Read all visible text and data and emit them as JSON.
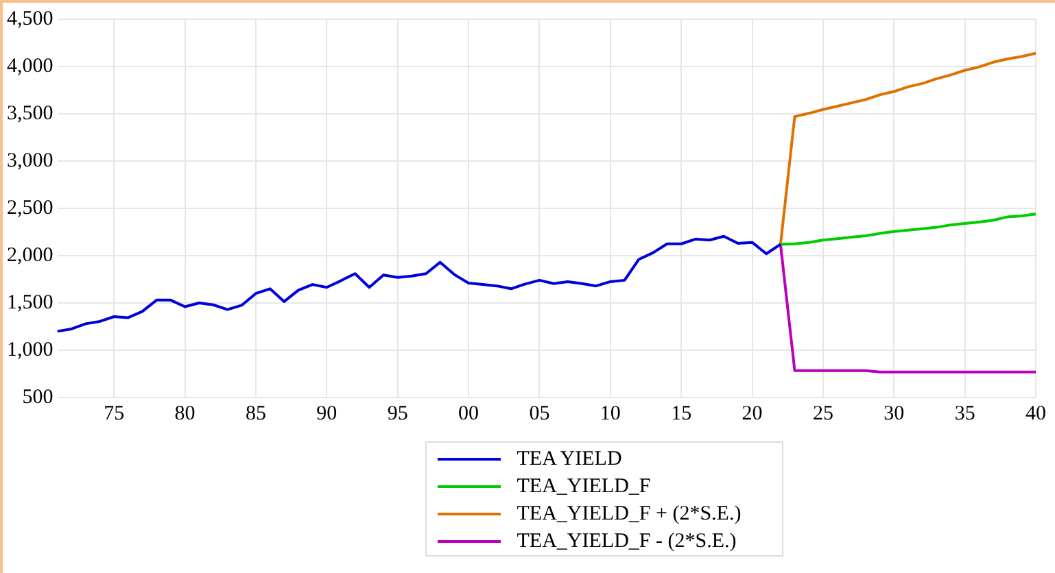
{
  "chart_data": {
    "type": "line",
    "x": [
      1971,
      1972,
      1973,
      1974,
      1975,
      1976,
      1977,
      1978,
      1979,
      1980,
      1981,
      1982,
      1983,
      1984,
      1985,
      1986,
      1987,
      1988,
      1989,
      1990,
      1991,
      1992,
      1993,
      1994,
      1995,
      1996,
      1997,
      1998,
      1999,
      2000,
      2001,
      2002,
      2003,
      2004,
      2005,
      2006,
      2007,
      2008,
      2009,
      2010,
      2011,
      2012,
      2013,
      2014,
      2015,
      2016,
      2017,
      2018,
      2019,
      2020,
      2021,
      2022,
      2023,
      2024,
      2025,
      2026,
      2027,
      2028,
      2029,
      2030,
      2031,
      2032,
      2033,
      2034,
      2035,
      2036,
      2037,
      2038,
      2039,
      2040
    ],
    "series": [
      {
        "name": "TEA YIELD",
        "color": "#0000dd",
        "values": [
          1200,
          1225,
          1280,
          1305,
          1355,
          1345,
          1410,
          1530,
          1530,
          1460,
          1500,
          1480,
          1430,
          1475,
          1600,
          1650,
          1515,
          1635,
          1695,
          1665,
          1735,
          1810,
          1665,
          1795,
          1770,
          1785,
          1810,
          1930,
          1800,
          1710,
          1695,
          1680,
          1650,
          1700,
          1740,
          1705,
          1725,
          1705,
          1680,
          1725,
          1740,
          1960,
          2030,
          2125,
          2125,
          2175,
          2165,
          2205,
          2130,
          2140,
          2020,
          2120,
          null,
          null,
          null,
          null,
          null,
          null,
          null,
          null,
          null,
          null,
          null,
          null,
          null,
          null,
          null,
          null,
          null,
          null
        ]
      },
      {
        "name": "TEA_YIELD_F",
        "color": "#00cc00",
        "values": [
          null,
          null,
          null,
          null,
          null,
          null,
          null,
          null,
          null,
          null,
          null,
          null,
          null,
          null,
          null,
          null,
          null,
          null,
          null,
          null,
          null,
          null,
          null,
          null,
          null,
          null,
          null,
          null,
          null,
          null,
          null,
          null,
          null,
          null,
          null,
          null,
          null,
          null,
          null,
          null,
          null,
          null,
          null,
          null,
          null,
          null,
          null,
          null,
          null,
          null,
          null,
          2120,
          2125,
          2140,
          2165,
          2180,
          2195,
          2210,
          2235,
          2255,
          2270,
          2285,
          2300,
          2325,
          2340,
          2355,
          2375,
          2410,
          2420,
          2440
        ]
      },
      {
        "name": "TEA_YIELD_F + (2*S.E.)",
        "color": "#e07000",
        "values": [
          null,
          null,
          null,
          null,
          null,
          null,
          null,
          null,
          null,
          null,
          null,
          null,
          null,
          null,
          null,
          null,
          null,
          null,
          null,
          null,
          null,
          null,
          null,
          null,
          null,
          null,
          null,
          null,
          null,
          null,
          null,
          null,
          null,
          null,
          null,
          null,
          null,
          null,
          null,
          null,
          null,
          null,
          null,
          null,
          null,
          null,
          null,
          null,
          null,
          null,
          null,
          2120,
          3470,
          3505,
          3545,
          3580,
          3615,
          3650,
          3700,
          3735,
          3785,
          3820,
          3870,
          3910,
          3960,
          3995,
          4045,
          4080,
          4105,
          4140
        ]
      },
      {
        "name": "TEA_YIELD_F - (2*S.E.)",
        "color": "#bb00bb",
        "values": [
          null,
          null,
          null,
          null,
          null,
          null,
          null,
          null,
          null,
          null,
          null,
          null,
          null,
          null,
          null,
          null,
          null,
          null,
          null,
          null,
          null,
          null,
          null,
          null,
          null,
          null,
          null,
          null,
          null,
          null,
          null,
          null,
          null,
          null,
          null,
          null,
          null,
          null,
          null,
          null,
          null,
          null,
          null,
          null,
          null,
          null,
          null,
          null,
          null,
          null,
          null,
          2120,
          785,
          785,
          785,
          785,
          785,
          785,
          770,
          770,
          770,
          770,
          770,
          770,
          770,
          770,
          770,
          770,
          770,
          770
        ]
      }
    ],
    "xlim": [
      1971,
      2040
    ],
    "xticks": [
      {
        "value": 1975,
        "label": "75"
      },
      {
        "value": 1980,
        "label": "80"
      },
      {
        "value": 1985,
        "label": "85"
      },
      {
        "value": 1990,
        "label": "90"
      },
      {
        "value": 1995,
        "label": "95"
      },
      {
        "value": 2000,
        "label": "00"
      },
      {
        "value": 2005,
        "label": "05"
      },
      {
        "value": 2010,
        "label": "10"
      },
      {
        "value": 2015,
        "label": "15"
      },
      {
        "value": 2020,
        "label": "20"
      },
      {
        "value": 2025,
        "label": "25"
      },
      {
        "value": 2030,
        "label": "30"
      },
      {
        "value": 2035,
        "label": "35"
      },
      {
        "value": 2040,
        "label": "40"
      }
    ],
    "ylim": [
      500,
      4500
    ],
    "yticks": [
      {
        "value": 500,
        "label": "500"
      },
      {
        "value": 1000,
        "label": "1,000"
      },
      {
        "value": 1500,
        "label": "1,500"
      },
      {
        "value": 2000,
        "label": "2,000"
      },
      {
        "value": 2500,
        "label": "2,500"
      },
      {
        "value": 3000,
        "label": "3,000"
      },
      {
        "value": 3500,
        "label": "3,500"
      },
      {
        "value": 4000,
        "label": "4,000"
      },
      {
        "value": 4500,
        "label": "4,500"
      }
    ],
    "grid": true,
    "legend": "bottom"
  }
}
